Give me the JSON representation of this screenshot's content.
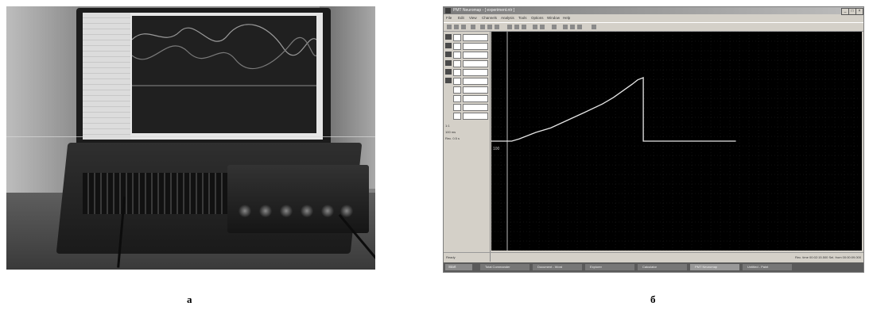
{
  "captions": {
    "left": "а",
    "right": "б"
  },
  "photo": {
    "description_icon": "laptop-with-data-acquisition-device-photo"
  },
  "window": {
    "title": "PMT Neuromap - [ experiment.ntr ]",
    "window_buttons": [
      "_",
      "□",
      "×"
    ],
    "menu": [
      "File",
      "Edit",
      "View",
      "Channels",
      "Analysis",
      "Tools",
      "Options",
      "Window",
      "Help"
    ],
    "left_panel_text": [
      "1:1",
      "100 ms",
      "Rec. 0.5 s"
    ],
    "y_axis_label": "100",
    "status_left": "Ready",
    "status_right": "Rec. time 00:02:15.500  Sel. from 00:00:09.000",
    "taskbar": {
      "start": "Start",
      "items": [
        "Total Commander",
        "Document - Word",
        "Explorer",
        "Calculator",
        "PMT Neuromap",
        "Untitled - Paint"
      ]
    }
  },
  "chart_data": {
    "type": "line",
    "title": "",
    "xlabel": "",
    "ylabel": "",
    "grid": true,
    "xlim": [
      0,
      100
    ],
    "ylim": [
      0,
      100
    ],
    "series": [
      {
        "x": [
          0,
          5.5,
          7.5,
          12,
          16,
          25,
          30,
          33,
          38,
          39.5,
          41,
          41,
          56,
          66
        ],
        "y": [
          50,
          50,
          51,
          54,
          56,
          63,
          67,
          70,
          76,
          78,
          79,
          50,
          50,
          50
        ]
      }
    ]
  }
}
